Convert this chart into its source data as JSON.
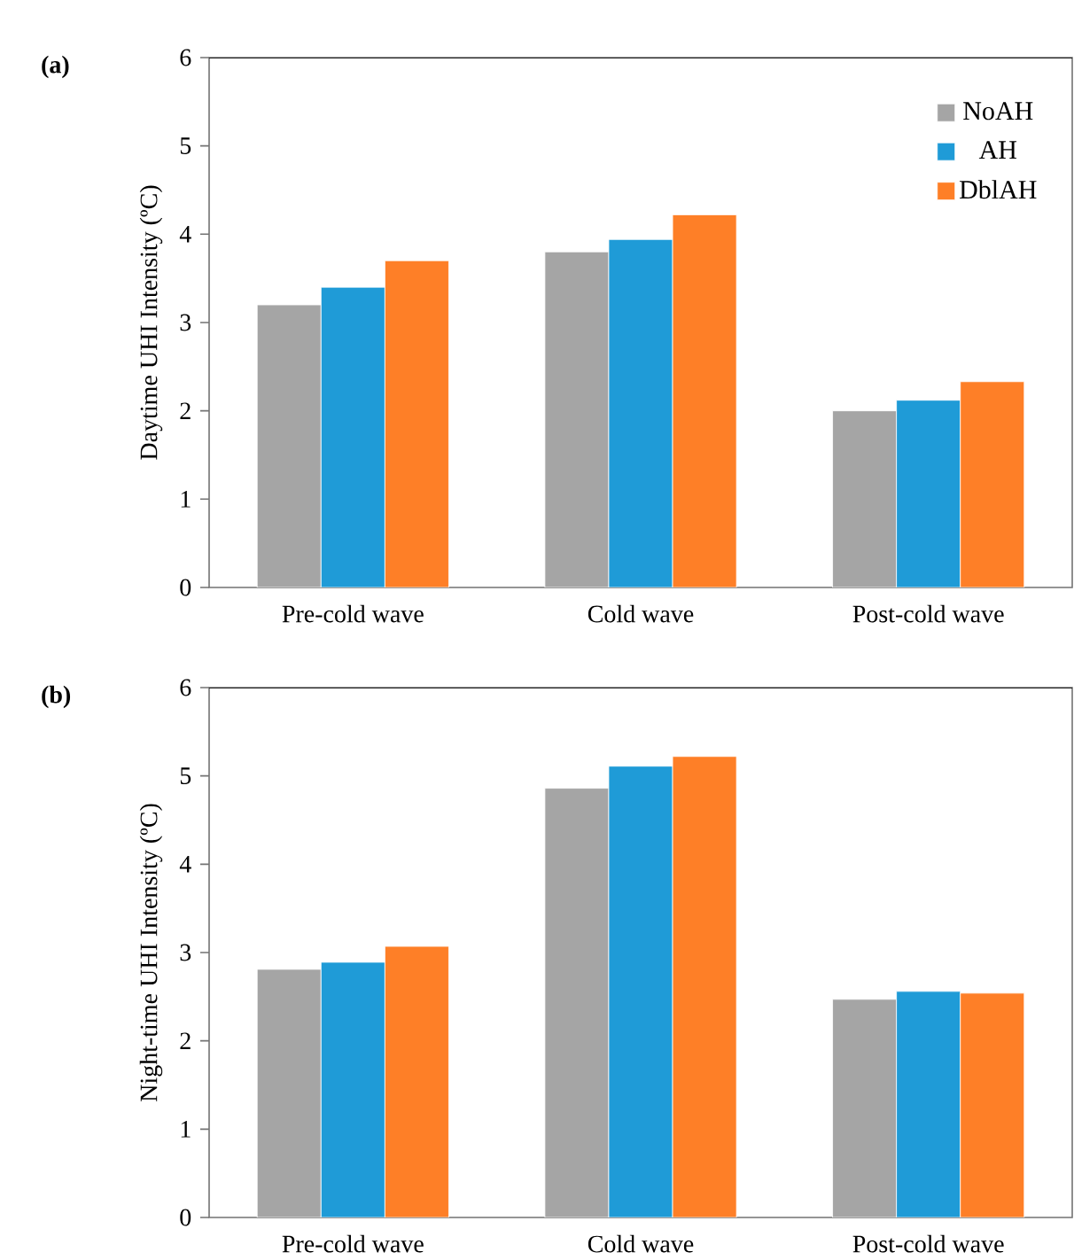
{
  "chart_data": [
    {
      "type": "bar",
      "title": "(a)",
      "ylabel": "Daytime UHI Intensity (ºC)",
      "categories": [
        "Pre-cold wave",
        "Cold wave",
        "Post-cold wave"
      ],
      "ylim": [
        0,
        6
      ],
      "yticks": [
        0,
        1,
        2,
        3,
        4,
        5,
        6
      ],
      "legend": "top right",
      "series": [
        {
          "name": "NoAH",
          "color": "#a5a5a5",
          "values": [
            3.2,
            3.8,
            2.0
          ]
        },
        {
          "name": "AH",
          "color": "#1f9bd7",
          "values": [
            3.4,
            3.94,
            2.12
          ]
        },
        {
          "name": "DblAH",
          "color": "#fe7f27",
          "values": [
            3.7,
            4.22,
            2.33
          ]
        }
      ]
    },
    {
      "type": "bar",
      "title": "(b)",
      "ylabel": "Night-time UHI Intensity (ºC)",
      "categories": [
        "Pre-cold wave",
        "Cold wave",
        "Post-cold wave"
      ],
      "ylim": [
        0,
        6
      ],
      "yticks": [
        0,
        1,
        2,
        3,
        4,
        5,
        6
      ],
      "series": [
        {
          "color": "#a5a5a5",
          "values": [
            2.81,
            4.86,
            2.47
          ]
        },
        {
          "color": "#1f9bd7",
          "values": [
            2.89,
            5.11,
            2.56
          ]
        },
        {
          "color": "#fe7f27",
          "values": [
            3.07,
            5.22,
            2.54
          ]
        }
      ]
    }
  ]
}
